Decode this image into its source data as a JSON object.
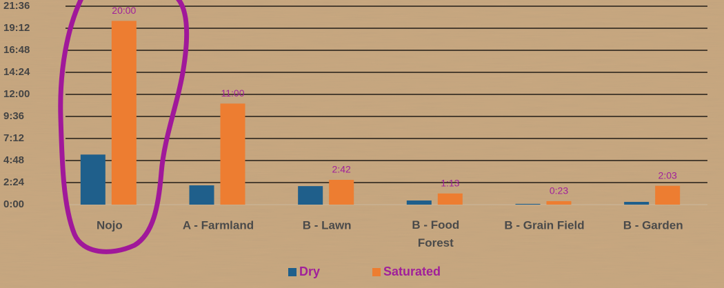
{
  "chart_data": {
    "type": "bar",
    "categories": [
      "Nojo",
      "A - Farmland",
      "B - Lawn",
      "B - Food Forest",
      "B - Grain Field",
      "B - Garden"
    ],
    "series": [
      {
        "name": "Dry",
        "color": "#1f5f8b",
        "values": [
          327,
          126,
          121,
          27,
          5,
          18
        ]
      },
      {
        "name": "Saturated",
        "color": "#ed7d31",
        "values": [
          1200,
          660,
          162,
          73,
          23,
          123
        ],
        "value_labels": [
          "20:00",
          "11:00",
          "2:42",
          "1:13",
          "0:23",
          "2:03"
        ]
      }
    ],
    "ylim": [
      0,
      1296
    ],
    "yticks": [
      {
        "value": 0,
        "label": "0:00"
      },
      {
        "value": 144,
        "label": "2:24"
      },
      {
        "value": 288,
        "label": "4:48"
      },
      {
        "value": 432,
        "label": "7:12"
      },
      {
        "value": 576,
        "label": "9:36"
      },
      {
        "value": 720,
        "label": "12:00"
      },
      {
        "value": 864,
        "label": "14:24"
      },
      {
        "value": 1008,
        "label": "16:48"
      },
      {
        "value": 1152,
        "label": "19:12"
      },
      {
        "value": 1296,
        "label": "21:36"
      }
    ],
    "grid": true,
    "legend": "bottom"
  }
}
